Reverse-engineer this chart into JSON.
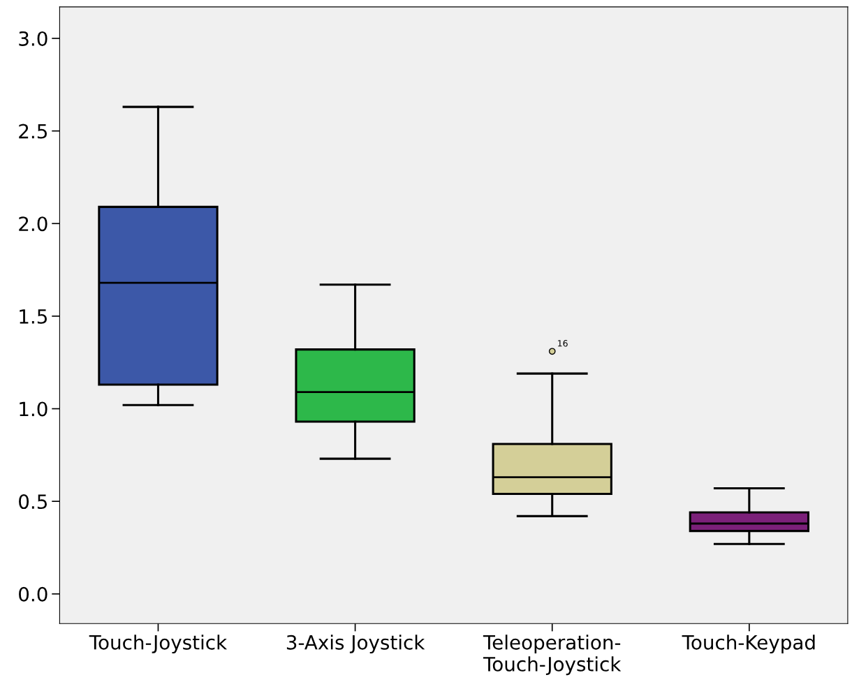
{
  "chart_data": {
    "type": "box",
    "categories": [
      "Touch-Joystick",
      "3-Axis Joystick",
      "Teleoperation-\nTouch-Joystick",
      "Touch-Keypad"
    ],
    "boxes": [
      {
        "low": 1.02,
        "q1": 1.13,
        "median": 1.68,
        "q3": 2.09,
        "high": 2.63
      },
      {
        "low": 0.73,
        "q1": 0.93,
        "median": 1.09,
        "q3": 1.32,
        "high": 1.67
      },
      {
        "low": 0.42,
        "q1": 0.54,
        "median": 0.63,
        "q3": 0.81,
        "high": 1.19,
        "outliers": [
          1.31
        ]
      },
      {
        "low": 0.27,
        "q1": 0.34,
        "median": 0.38,
        "q3": 0.44,
        "high": 0.57
      }
    ],
    "colors": [
      "#3c58a8",
      "#2db84a",
      "#d4cf98",
      "#7b2079"
    ],
    "annotations": [
      "16"
    ],
    "ylim": [
      -0.16,
      3.17
    ],
    "yticks": [
      {
        "value": 0,
        "label": "0.0"
      },
      {
        "value": 0.5,
        "label": "0.5"
      },
      {
        "value": 1,
        "label": "1.0"
      },
      {
        "value": 1.5,
        "label": "1.5"
      },
      {
        "value": 2,
        "label": "2.0"
      },
      {
        "value": 2.5,
        "label": "2.5"
      },
      {
        "value": 3,
        "label": "3.0"
      }
    ],
    "grid": false
  }
}
